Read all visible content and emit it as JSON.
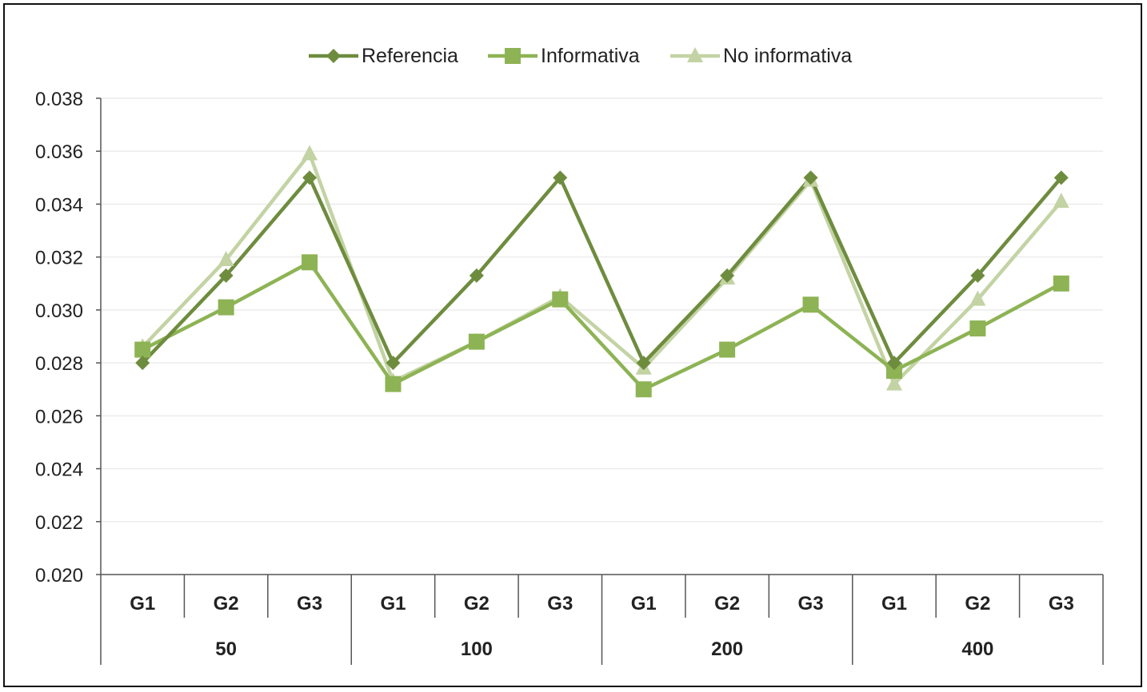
{
  "chart_data": {
    "type": "line",
    "title": "",
    "xlabel": "",
    "ylabel": "",
    "ylim": [
      0.02,
      0.038
    ],
    "y_ticks": [
      "0.020",
      "0.022",
      "0.024",
      "0.026",
      "0.028",
      "0.030",
      "0.032",
      "0.034",
      "0.036",
      "0.038"
    ],
    "grid": true,
    "legend_position": "top-center",
    "category_groups": [
      {
        "label": "50",
        "subcategories": [
          "G1",
          "G2",
          "G3"
        ]
      },
      {
        "label": "100",
        "subcategories": [
          "G1",
          "G2",
          "G3"
        ]
      },
      {
        "label": "200",
        "subcategories": [
          "G1",
          "G2",
          "G3"
        ]
      },
      {
        "label": "400",
        "subcategories": [
          "G1",
          "G2",
          "G3"
        ]
      }
    ],
    "series": [
      {
        "name": "Referencia",
        "marker": "diamond",
        "color": "#6e8c3e",
        "values": [
          0.028,
          0.0313,
          0.035,
          0.028,
          0.0313,
          0.035,
          0.028,
          0.0313,
          0.035,
          0.028,
          0.0313,
          0.035
        ]
      },
      {
        "name": "Informativa",
        "marker": "square",
        "color": "#8db354",
        "values": [
          0.0285,
          0.0301,
          0.0318,
          0.0272,
          0.0288,
          0.0304,
          0.027,
          0.0285,
          0.0302,
          0.0277,
          0.0293,
          0.031
        ]
      },
      {
        "name": "No informativa",
        "marker": "triangle",
        "color": "#c3d3a4",
        "values": [
          0.0286,
          0.0319,
          0.0359,
          0.0273,
          0.0288,
          0.0305,
          0.0278,
          0.0312,
          0.0349,
          0.0272,
          0.0304,
          0.0341
        ]
      }
    ]
  }
}
